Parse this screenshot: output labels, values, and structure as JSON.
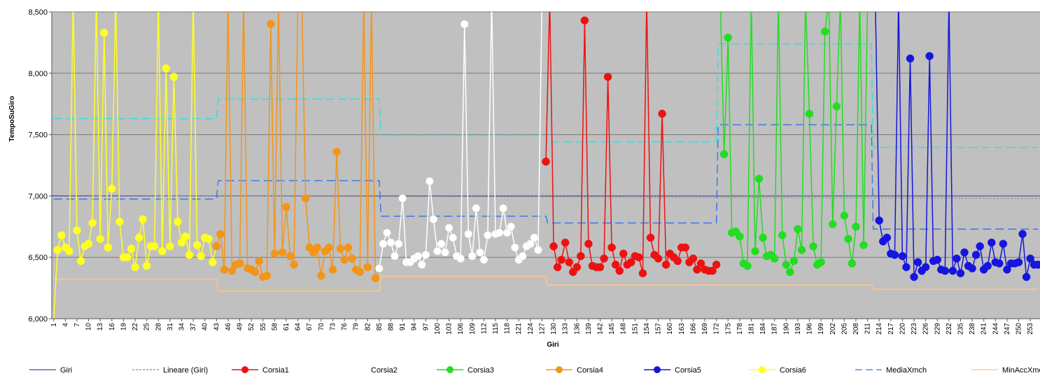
{
  "chart_data": {
    "type": "line",
    "xlabel": "Giri",
    "ylabel": "TempoSuGiro",
    "ylim": [
      6000,
      8500
    ],
    "xlim": [
      1,
      255
    ],
    "y_ticks": [
      "6,000",
      "6,500",
      "7,000",
      "7,500",
      "8,000",
      "8,500"
    ],
    "y_tick_values": [
      6000,
      6500,
      7000,
      7500,
      8000,
      8500
    ],
    "x_tick_labels": [
      1,
      4,
      7,
      10,
      13,
      16,
      19,
      22,
      25,
      28,
      31,
      34,
      37,
      40,
      43,
      46,
      49,
      52,
      55,
      58,
      61,
      64,
      67,
      70,
      73,
      76,
      79,
      82,
      85,
      88,
      91,
      94,
      97,
      100,
      103,
      106,
      109,
      112,
      115,
      118,
      121,
      124,
      127,
      130,
      133,
      136,
      139,
      142,
      145,
      148,
      151,
      154,
      157,
      160,
      163,
      166,
      169,
      172,
      175,
      178,
      181,
      184,
      187,
      190,
      193,
      196,
      199,
      202,
      205,
      208,
      211,
      214,
      217,
      220,
      223,
      226,
      229,
      232,
      235,
      238,
      241,
      244,
      247,
      250,
      253
    ],
    "grid": true,
    "plot_background": "#c0c0c0",
    "legend_position": "bottom",
    "legend": [
      {
        "label": "Giri",
        "color": "#4b4b9a",
        "style": "solid",
        "marker": false
      },
      {
        "label": "Lineare (Giri)",
        "color": "#8a8a8a",
        "style": "dashed",
        "marker": false
      },
      {
        "label": "Corsia1",
        "color": "#ee1111",
        "style": "solid",
        "marker": true
      },
      {
        "label": "Corsia2",
        "color": "#ffffff",
        "style": "solid",
        "marker": true
      },
      {
        "label": "Corsia3",
        "color": "#22dd22",
        "style": "solid",
        "marker": true
      },
      {
        "label": "Corsia4",
        "color": "#f39519",
        "style": "solid",
        "marker": true
      },
      {
        "label": "Corsia5",
        "color": "#1515e0",
        "style": "solid",
        "marker": true
      },
      {
        "label": "Corsia6",
        "color": "#ffff22",
        "style": "solid",
        "marker": true
      },
      {
        "label": "MediaXmch",
        "color": "#3a78e8",
        "style": "longdash",
        "marker": false
      },
      {
        "label": "MinAccXmch",
        "color": "#f9c38c",
        "style": "solid",
        "marker": false
      }
    ],
    "series": [
      {
        "name": "Corsia6",
        "color": "#ffff22",
        "x": [
          1,
          2,
          3,
          4,
          5,
          6,
          7,
          8,
          9,
          10,
          11,
          12,
          13,
          14,
          15,
          16,
          17,
          18,
          19,
          20,
          21,
          22,
          23,
          24,
          25,
          26,
          27,
          28,
          29,
          30,
          31,
          32,
          33,
          34,
          35,
          36,
          37,
          38,
          39,
          40,
          41,
          42,
          43
        ],
        "y": [
          6000,
          6560,
          6680,
          6580,
          6550,
          8600,
          6720,
          6470,
          6590,
          6610,
          6780,
          8600,
          6650,
          8330,
          6580,
          7060,
          8600,
          6790,
          6500,
          6500,
          6570,
          6420,
          6660,
          6810,
          6430,
          6590,
          6590,
          8600,
          6550,
          8040,
          6590,
          7970,
          6790,
          6620,
          6670,
          6520,
          8600,
          6600,
          6510,
          6660,
          6650,
          6460,
          6590
        ]
      },
      {
        "name": "Corsia4",
        "color": "#f39519",
        "x": [
          43,
          44,
          45,
          46,
          47,
          48,
          49,
          50,
          51,
          52,
          53,
          54,
          55,
          56,
          57,
          58,
          59,
          60,
          61,
          62,
          63,
          64,
          65,
          66,
          67,
          68,
          69,
          70,
          71,
          72,
          73,
          74,
          75,
          76,
          77,
          78,
          79,
          80,
          81,
          82,
          83,
          84,
          85
        ],
        "y": [
          6590,
          6690,
          6400,
          8600,
          6390,
          6440,
          6450,
          8600,
          6410,
          6400,
          6380,
          6470,
          6340,
          6350,
          8400,
          6530,
          8600,
          6540,
          6910,
          6510,
          6440,
          8600,
          8600,
          6980,
          6580,
          6540,
          6580,
          6350,
          6550,
          6580,
          6400,
          7360,
          6570,
          6480,
          6580,
          6490,
          6400,
          6380,
          8600,
          6420,
          8600,
          6330,
          6410
        ]
      },
      {
        "name": "Corsia2",
        "color": "#ffffff",
        "x": [
          85,
          86,
          87,
          88,
          89,
          90,
          91,
          92,
          93,
          94,
          95,
          96,
          97,
          98,
          99,
          100,
          101,
          102,
          103,
          104,
          105,
          106,
          107,
          108,
          109,
          110,
          111,
          112,
          113,
          114,
          115,
          116,
          117,
          118,
          119,
          120,
          121,
          122,
          123,
          124,
          125,
          126,
          127
        ],
        "y": [
          6410,
          6610,
          6700,
          6620,
          6510,
          6610,
          6980,
          6460,
          6460,
          6490,
          6510,
          6440,
          6520,
          7120,
          6810,
          6550,
          6610,
          6540,
          6740,
          6660,
          6510,
          6490,
          8400,
          6690,
          6510,
          6900,
          6540,
          6480,
          6680,
          8600,
          6690,
          6700,
          6900,
          6700,
          6750,
          6580,
          6480,
          6510,
          6590,
          6610,
          6660,
          6560,
          8600
        ]
      },
      {
        "name": "Corsia1",
        "color": "#ee1111",
        "x": [
          128,
          129,
          130,
          131,
          132,
          133,
          134,
          135,
          136,
          137,
          138,
          139,
          140,
          141,
          142,
          143,
          144,
          145,
          146,
          147,
          148,
          149,
          150,
          151,
          152,
          153,
          154,
          155,
          156,
          157,
          158,
          159,
          160,
          161,
          162,
          163,
          164,
          165,
          166,
          167,
          168,
          169,
          170,
          171,
          172
        ],
        "y": [
          7280,
          8600,
          6590,
          6420,
          6480,
          6620,
          6460,
          6380,
          6420,
          6510,
          8430,
          6610,
          6430,
          6420,
          6420,
          6490,
          7970,
          6580,
          6440,
          6390,
          6530,
          6440,
          6460,
          6510,
          6500,
          6370,
          8600,
          6660,
          6520,
          6490,
          7670,
          6440,
          6530,
          6500,
          6470,
          6580,
          6580,
          6460,
          6490,
          6400,
          6450,
          6400,
          6390,
          6390,
          6440
        ]
      },
      {
        "name": "Corsia3",
        "color": "#22dd22",
        "x": [
          173,
          174,
          175,
          176,
          177,
          178,
          179,
          180,
          181,
          182,
          183,
          184,
          185,
          186,
          187,
          188,
          189,
          190,
          191,
          192,
          193,
          194,
          195,
          196,
          197,
          198,
          199,
          200,
          201,
          202,
          203,
          204,
          205,
          206,
          207,
          208,
          209,
          210,
          211,
          212
        ],
        "y": [
          8600,
          7340,
          8290,
          6700,
          6710,
          6670,
          6450,
          6430,
          8600,
          6550,
          7140,
          6660,
          6510,
          6520,
          6490,
          8600,
          6680,
          6440,
          6380,
          6470,
          6730,
          6560,
          8600,
          7670,
          6590,
          6440,
          6460,
          8340,
          8600,
          6770,
          7730,
          8600,
          6840,
          6650,
          6450,
          6750,
          8600,
          6600,
          8600,
          8600
        ]
      },
      {
        "name": "Corsia5",
        "color": "#1515e0",
        "x": [
          212,
          213,
          214,
          215,
          216,
          217,
          218,
          219,
          220,
          221,
          222,
          223,
          224,
          225,
          226,
          227,
          228,
          229,
          230,
          231,
          232,
          233,
          234,
          235,
          236,
          237,
          238,
          239,
          240,
          241,
          242,
          243,
          244,
          245,
          246,
          247,
          248,
          249,
          250,
          251,
          252,
          253,
          254,
          255
        ],
        "y": [
          8600,
          8600,
          6800,
          6630,
          6660,
          6530,
          6520,
          8600,
          6510,
          6420,
          8120,
          6340,
          6460,
          6390,
          6420,
          8140,
          6470,
          6480,
          6400,
          6390,
          8600,
          6390,
          6490,
          6370,
          6540,
          6430,
          6410,
          6520,
          6590,
          6400,
          6430,
          6620,
          6460,
          6450,
          6610,
          6400,
          6450,
          6450,
          6460,
          6690,
          6340,
          6490,
          6440,
          6440
        ]
      }
    ],
    "average_lines": [
      {
        "name": "MediaXmch",
        "color": "#3a78e8",
        "segments": [
          {
            "x_start": 1,
            "x_end": 43,
            "y": 6975
          },
          {
            "x_start": 44,
            "x_end": 85,
            "y": 7125
          },
          {
            "x_start": 86,
            "x_end": 128,
            "y": 6835
          },
          {
            "x_start": 129,
            "x_end": 172,
            "y": 6780
          },
          {
            "x_start": 173,
            "x_end": 212,
            "y": 7580
          },
          {
            "x_start": 213,
            "x_end": 255,
            "y": 6730
          }
        ]
      },
      {
        "name": "MediaXmch (upper)",
        "color": "#33e0e0",
        "segments": [
          {
            "x_start": 1,
            "x_end": 43,
            "y": 7630
          },
          {
            "x_start": 44,
            "x_end": 85,
            "y": 7790
          },
          {
            "x_start": 86,
            "x_end": 128,
            "y": 7495
          },
          {
            "x_start": 129,
            "x_end": 172,
            "y": 7440
          },
          {
            "x_start": 173,
            "x_end": 212,
            "y": 8240
          },
          {
            "x_start": 213,
            "x_end": 255,
            "y": 7395
          }
        ]
      },
      {
        "name": "MinAccXmch",
        "color": "#f9c38c",
        "segments": [
          {
            "x_start": 1,
            "x_end": 43,
            "y": 6320
          },
          {
            "x_start": 44,
            "x_end": 85,
            "y": 6225
          },
          {
            "x_start": 86,
            "x_end": 128,
            "y": 6345
          },
          {
            "x_start": 129,
            "x_end": 212,
            "y": 6275
          },
          {
            "x_start": 213,
            "x_end": 255,
            "y": 6240
          }
        ]
      }
    ],
    "trend_line": {
      "name": "Lineare (Giri)",
      "color": "#8a8a8a",
      "y_start": 7005,
      "y_end": 6980
    },
    "reference_line": {
      "name": "Giri",
      "color": "#4b4b9a",
      "y": 7000
    }
  }
}
